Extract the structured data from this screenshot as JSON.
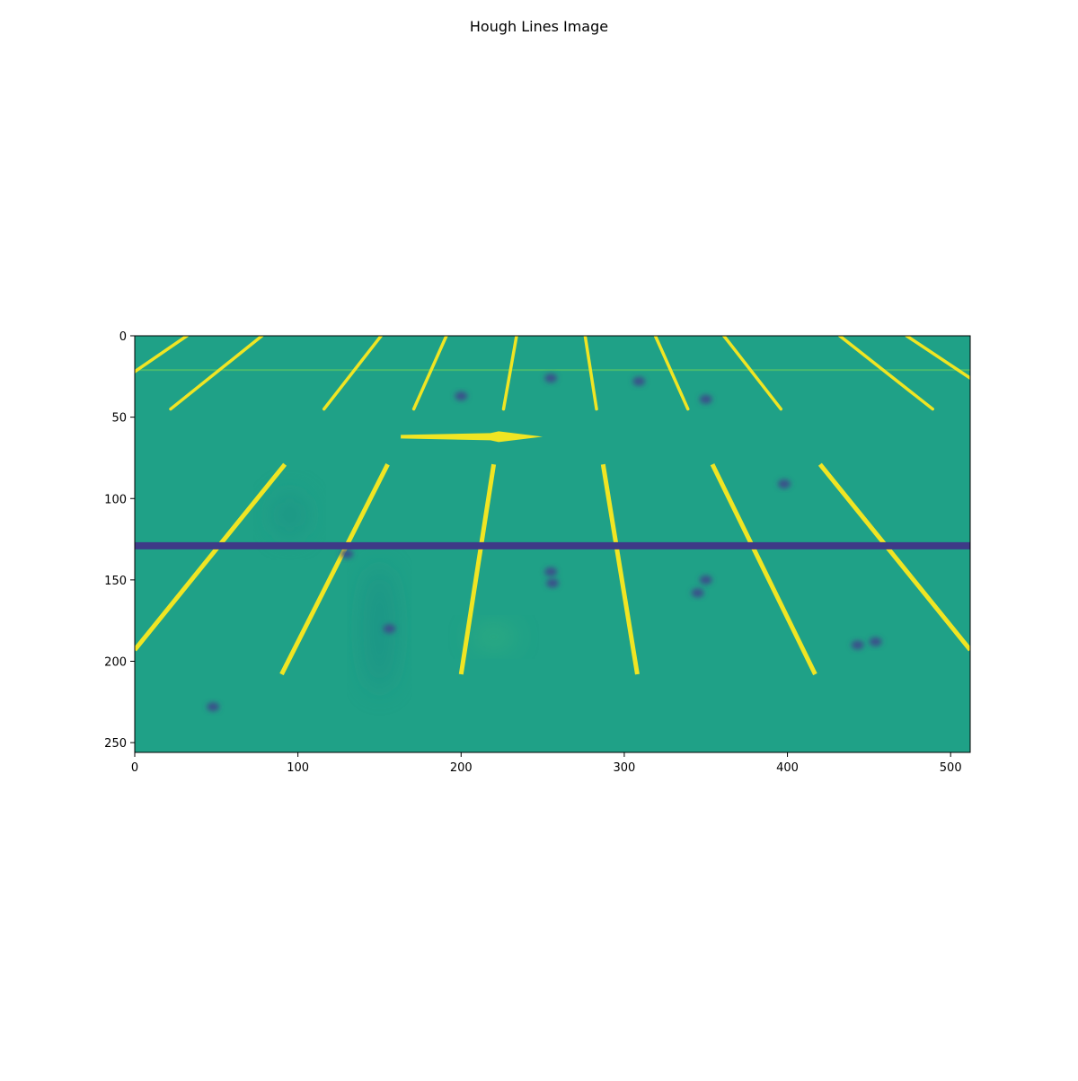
{
  "chart_data": {
    "type": "heatmap",
    "title": "Hough Lines Image",
    "xlabel": "",
    "ylabel": "",
    "xlim": [
      0,
      512
    ],
    "ylim": [
      256,
      0
    ],
    "y_axis_inverted": true,
    "grid": false,
    "legend": "none",
    "colormap": "viridis",
    "x_ticks": [
      0,
      100,
      200,
      300,
      400,
      500
    ],
    "y_ticks": [
      0,
      50,
      100,
      150,
      200,
      250
    ],
    "background_color": "#1fa187",
    "marking_color": "#f0e523",
    "detected_line": {
      "y": 129,
      "x_start": 0,
      "x_end": 512,
      "color": "#3e3a87"
    },
    "parking_lines_far": [
      {
        "x1": 32,
        "y1": 0,
        "x2": 0,
        "y2": 22
      },
      {
        "x1": 78,
        "y1": 0,
        "x2": 22,
        "y2": 45
      },
      {
        "x1": 151,
        "y1": 0,
        "x2": 116,
        "y2": 45
      },
      {
        "x1": 191,
        "y1": 0,
        "x2": 171,
        "y2": 45
      },
      {
        "x1": 234,
        "y1": 0,
        "x2": 226,
        "y2": 45
      },
      {
        "x1": 276,
        "y1": 0,
        "x2": 283,
        "y2": 45
      },
      {
        "x1": 319,
        "y1": 0,
        "x2": 339,
        "y2": 45
      },
      {
        "x1": 361,
        "y1": 0,
        "x2": 396,
        "y2": 45
      },
      {
        "x1": 432,
        "y1": 0,
        "x2": 489,
        "y2": 45
      },
      {
        "x1": 473,
        "y1": 0,
        "x2": 512,
        "y2": 26
      }
    ],
    "parking_lines_near": [
      {
        "x1": 92,
        "y1": 79,
        "x2": 0,
        "y2": 193
      },
      {
        "x1": 155,
        "y1": 79,
        "x2": 90,
        "y2": 208
      },
      {
        "x1": 220,
        "y1": 79,
        "x2": 200,
        "y2": 208
      },
      {
        "x1": 287,
        "y1": 79,
        "x2": 308,
        "y2": 208
      },
      {
        "x1": 354,
        "y1": 79,
        "x2": 417,
        "y2": 208
      },
      {
        "x1": 420,
        "y1": 79,
        "x2": 512,
        "y2": 193
      }
    ],
    "horizontal_faint_line": {
      "y": 21,
      "x_start": 0,
      "x_end": 512
    },
    "arrow_marking": {
      "x1": 163,
      "y1": 62,
      "x2": 250,
      "y2": 62
    },
    "dark_spots": [
      {
        "x": 156,
        "y": 180
      },
      {
        "x": 255,
        "y": 145
      },
      {
        "x": 256,
        "y": 152
      },
      {
        "x": 350,
        "y": 150
      },
      {
        "x": 345,
        "y": 158
      },
      {
        "x": 443,
        "y": 190
      },
      {
        "x": 454,
        "y": 188
      },
      {
        "x": 200,
        "y": 37
      },
      {
        "x": 350,
        "y": 39
      },
      {
        "x": 309,
        "y": 28
      },
      {
        "x": 255,
        "y": 26
      },
      {
        "x": 398,
        "y": 91
      },
      {
        "x": 130,
        "y": 134
      },
      {
        "x": 48,
        "y": 228
      }
    ]
  }
}
